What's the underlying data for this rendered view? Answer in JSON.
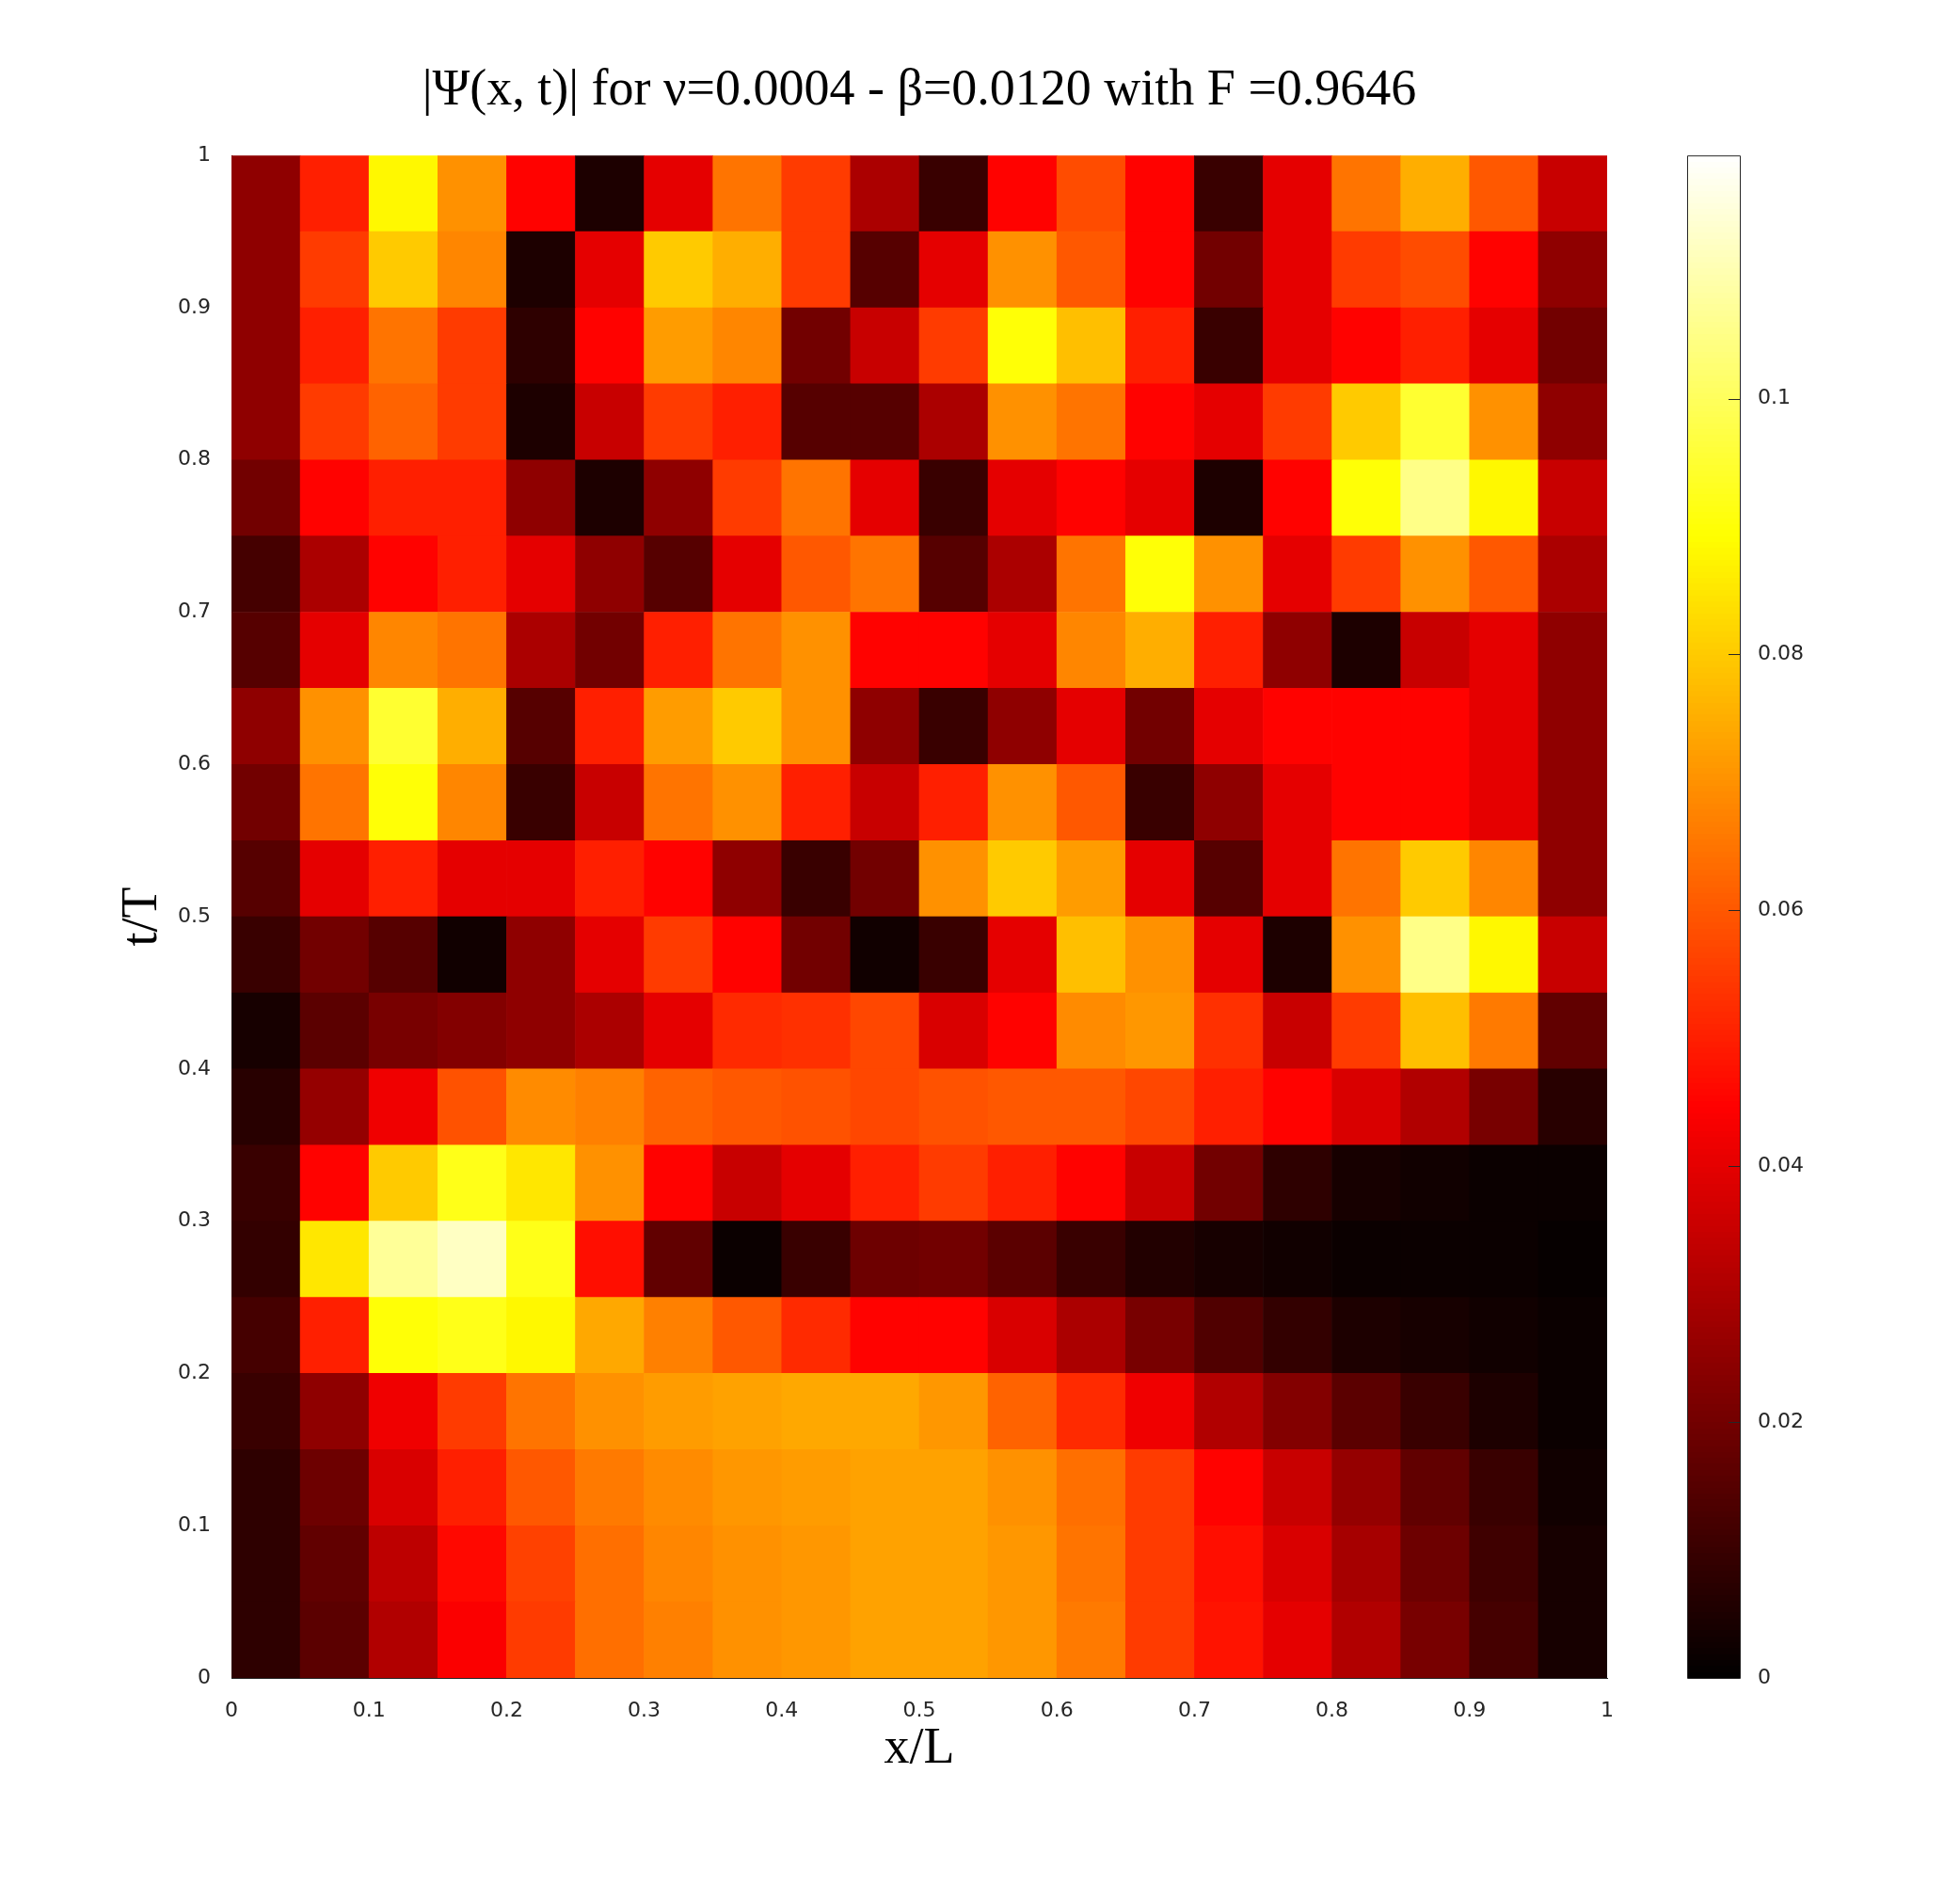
{
  "chart_data": {
    "type": "heatmap",
    "title": "|Ψ(x, t)| for ν=0.0004 - β=0.0120 with F =0.9646",
    "xlabel": "x/L",
    "ylabel": "t/T",
    "x": [
      0.025,
      0.075,
      0.125,
      0.175,
      0.225,
      0.275,
      0.325,
      0.375,
      0.425,
      0.475,
      0.525,
      0.575,
      0.625,
      0.675,
      0.725,
      0.775,
      0.825,
      0.875,
      0.925,
      0.975
    ],
    "xlim": [
      0,
      1
    ],
    "xticks": [
      0,
      0.1,
      0.2,
      0.3,
      0.4,
      0.5,
      0.6,
      0.7,
      0.8,
      0.9,
      1
    ],
    "ylim": [
      0,
      1
    ],
    "yticks": [
      0,
      0.1,
      0.2,
      0.3,
      0.4,
      0.5,
      0.6,
      0.7,
      0.8,
      0.9,
      1
    ],
    "clim": [
      0,
      0.119
    ],
    "cticks": [
      0,
      0.02,
      0.04,
      0.06,
      0.08,
      0.1
    ],
    "cells": [
      [
        0.025,
        0.05,
        0.088,
        0.07,
        0.045,
        0.005,
        0.04,
        0.065,
        0.055,
        0.03,
        0.01,
        0.045,
        0.058,
        0.045,
        0.01,
        0.04,
        0.065,
        0.075,
        0.06,
        0.035
      ],
      [
        0.025,
        0.055,
        0.08,
        0.068,
        0.005,
        0.04,
        0.08,
        0.075,
        0.055,
        0.015,
        0.04,
        0.07,
        0.06,
        0.045,
        0.02,
        0.04,
        0.055,
        0.058,
        0.045,
        0.025
      ],
      [
        0.025,
        0.05,
        0.065,
        0.055,
        0.008,
        0.045,
        0.072,
        0.068,
        0.02,
        0.035,
        0.055,
        0.09,
        0.078,
        0.05,
        0.01,
        0.04,
        0.045,
        0.05,
        0.04,
        0.02
      ],
      [
        0.025,
        0.055,
        0.062,
        0.055,
        0.005,
        0.035,
        0.055,
        0.05,
        0.015,
        0.015,
        0.03,
        0.07,
        0.065,
        0.045,
        0.04,
        0.055,
        0.08,
        0.095,
        0.07,
        0.025
      ],
      [
        0.02,
        0.045,
        0.05,
        0.05,
        0.025,
        0.005,
        0.025,
        0.055,
        0.065,
        0.04,
        0.01,
        0.04,
        0.045,
        0.04,
        0.005,
        0.045,
        0.09,
        0.105,
        0.088,
        0.035
      ],
      [
        0.012,
        0.03,
        0.045,
        0.05,
        0.04,
        0.025,
        0.015,
        0.04,
        0.06,
        0.065,
        0.015,
        0.03,
        0.065,
        0.09,
        0.07,
        0.04,
        0.055,
        0.07,
        0.06,
        0.03
      ],
      [
        0.015,
        0.04,
        0.068,
        0.065,
        0.03,
        0.02,
        0.05,
        0.065,
        0.07,
        0.045,
        0.045,
        0.04,
        0.068,
        0.075,
        0.05,
        0.025,
        0.005,
        0.035,
        0.04,
        0.025
      ],
      [
        0.025,
        0.07,
        0.095,
        0.075,
        0.015,
        0.05,
        0.072,
        0.08,
        0.07,
        0.025,
        0.01,
        0.025,
        0.04,
        0.02,
        0.04,
        0.045,
        0.045,
        0.045,
        0.04,
        0.025
      ],
      [
        0.02,
        0.065,
        0.09,
        0.068,
        0.01,
        0.035,
        0.065,
        0.07,
        0.05,
        0.035,
        0.05,
        0.07,
        0.06,
        0.01,
        0.025,
        0.04,
        0.045,
        0.045,
        0.04,
        0.025
      ],
      [
        0.015,
        0.04,
        0.05,
        0.04,
        0.04,
        0.05,
        0.045,
        0.025,
        0.01,
        0.02,
        0.07,
        0.08,
        0.072,
        0.04,
        0.015,
        0.04,
        0.065,
        0.08,
        0.068,
        0.025
      ],
      [
        0.01,
        0.02,
        0.015,
        0.003,
        0.025,
        0.04,
        0.055,
        0.045,
        0.02,
        0.003,
        0.01,
        0.04,
        0.078,
        0.07,
        0.04,
        0.005,
        0.07,
        0.105,
        0.088,
        0.035
      ],
      [
        0.004,
        0.016,
        0.021,
        0.023,
        0.025,
        0.03,
        0.04,
        0.052,
        0.053,
        0.057,
        0.038,
        0.045,
        0.069,
        0.071,
        0.053,
        0.035,
        0.055,
        0.078,
        0.066,
        0.017
      ],
      [
        0.007,
        0.026,
        0.042,
        0.059,
        0.069,
        0.067,
        0.062,
        0.06,
        0.059,
        0.057,
        0.059,
        0.06,
        0.06,
        0.057,
        0.05,
        0.045,
        0.038,
        0.031,
        0.021,
        0.007
      ],
      [
        0.01,
        0.045,
        0.08,
        0.092,
        0.085,
        0.07,
        0.045,
        0.035,
        0.04,
        0.05,
        0.055,
        0.05,
        0.045,
        0.035,
        0.02,
        0.008,
        0.004,
        0.003,
        0.002,
        0.002
      ],
      [
        0.009,
        0.085,
        0.107,
        0.112,
        0.092,
        0.047,
        0.017,
        0.002,
        0.01,
        0.019,
        0.02,
        0.016,
        0.01,
        0.006,
        0.004,
        0.003,
        0.002,
        0.002,
        0.002,
        0.001
      ],
      [
        0.012,
        0.05,
        0.09,
        0.092,
        0.088,
        0.074,
        0.067,
        0.06,
        0.052,
        0.045,
        0.045,
        0.038,
        0.03,
        0.021,
        0.014,
        0.009,
        0.005,
        0.004,
        0.003,
        0.002
      ],
      [
        0.01,
        0.025,
        0.042,
        0.055,
        0.065,
        0.07,
        0.072,
        0.073,
        0.074,
        0.074,
        0.071,
        0.062,
        0.052,
        0.042,
        0.031,
        0.023,
        0.016,
        0.01,
        0.005,
        0.002
      ],
      [
        0.008,
        0.019,
        0.038,
        0.05,
        0.06,
        0.066,
        0.069,
        0.071,
        0.072,
        0.073,
        0.073,
        0.07,
        0.064,
        0.055,
        0.045,
        0.035,
        0.026,
        0.017,
        0.01,
        0.003
      ],
      [
        0.008,
        0.017,
        0.033,
        0.046,
        0.056,
        0.064,
        0.068,
        0.07,
        0.071,
        0.073,
        0.073,
        0.071,
        0.065,
        0.055,
        0.047,
        0.038,
        0.029,
        0.019,
        0.011,
        0.004
      ],
      [
        0.008,
        0.016,
        0.031,
        0.044,
        0.055,
        0.064,
        0.067,
        0.07,
        0.071,
        0.073,
        0.073,
        0.071,
        0.066,
        0.055,
        0.048,
        0.04,
        0.031,
        0.021,
        0.012,
        0.004
      ]
    ]
  }
}
